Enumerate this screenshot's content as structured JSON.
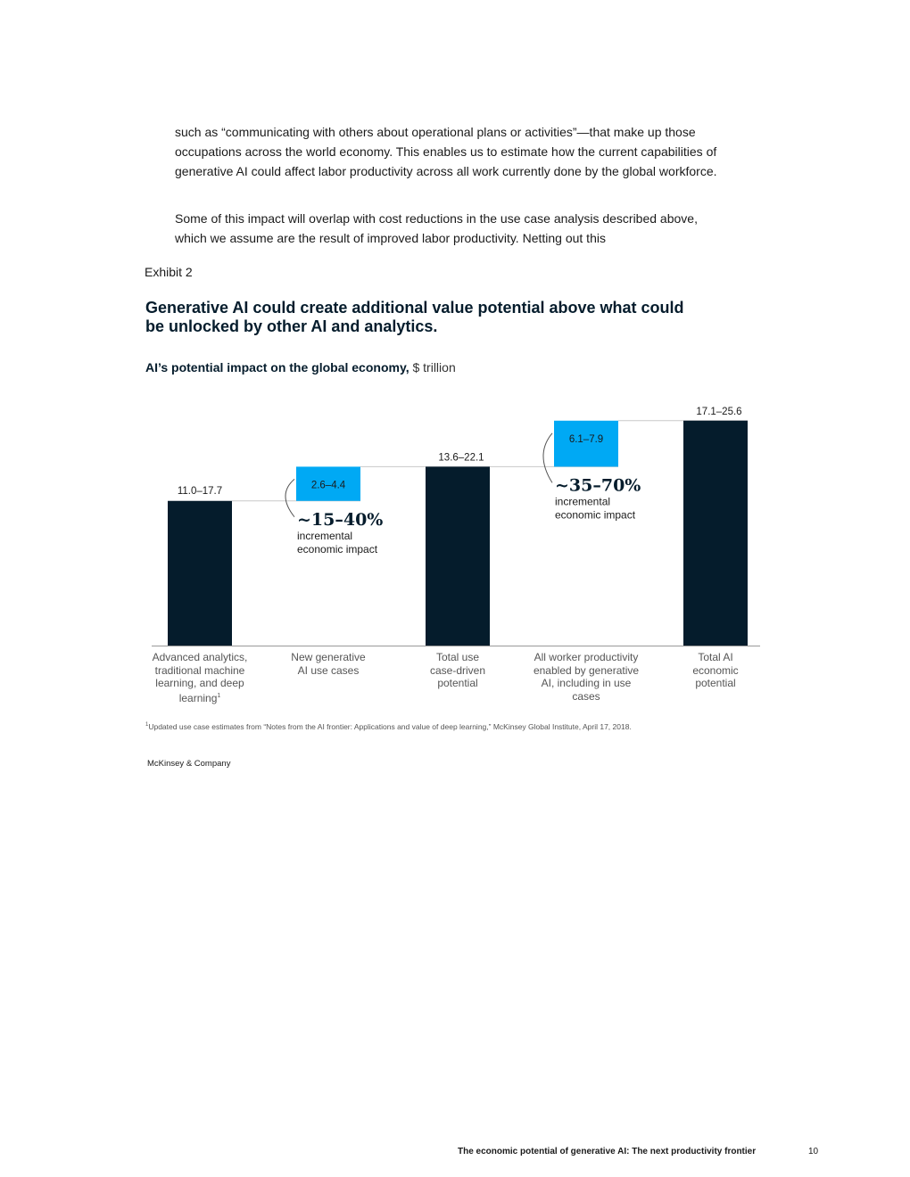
{
  "body": {
    "paragraph1": "such as “communicating with others about operational plans or activities”—that make up those occupations across the world economy. This enables us to estimate how the current capabilities of generative AI could affect labor productivity across all work currently done by the global workforce.",
    "paragraph2": "Some of this impact will overlap with cost reductions in the use case analysis described above, which we assume are the result of improved labor productivity. Netting out this"
  },
  "exhibit": {
    "label": "Exhibit 2",
    "title": "Generative AI could create additional value potential above what could be unlocked by other AI and analytics.",
    "subtitle_bold": "AI’s potential impact on the global economy,",
    "subtitle_unit": "$ trillion"
  },
  "chart_data": {
    "type": "bar",
    "subtype": "waterfall",
    "categories": [
      "Advanced analytics, traditional machine learning, and deep learning",
      "New generative AI use cases",
      "Total use case-driven potential",
      "All worker productivity enabled by generative AI, including in use cases",
      "Total AI economic potential"
    ],
    "category_lines": [
      [
        "Advanced analytics,",
        "traditional machine",
        "learning, and deep",
        "learning"
      ],
      [
        "New generative",
        "AI use cases"
      ],
      [
        "Total use",
        "case-driven",
        "potential"
      ],
      [
        "All worker productivity",
        "enabled by generative",
        "AI, including in use",
        "cases"
      ],
      [
        "Total AI",
        "economic",
        "potential"
      ]
    ],
    "bars": [
      {
        "label": "11.0–17.7",
        "low": 11.0,
        "high": 17.7,
        "base": 0,
        "value": 11.0,
        "kind": "total"
      },
      {
        "label": "2.6–4.4",
        "low": 2.6,
        "high": 4.4,
        "base": 11.0,
        "value": 2.6,
        "kind": "increment"
      },
      {
        "label": "13.6–22.1",
        "low": 13.6,
        "high": 22.1,
        "base": 0,
        "value": 13.6,
        "kind": "total"
      },
      {
        "label": "6.1–7.9",
        "low": 6.1,
        "high": 7.9,
        "base": 13.6,
        "value": 3.5,
        "kind": "increment"
      },
      {
        "label": "17.1–25.6",
        "low": 17.1,
        "high": 25.6,
        "base": 0,
        "value": 17.1,
        "kind": "total"
      }
    ],
    "annotations": [
      {
        "bar_index": 1,
        "value": "~15–40%",
        "text_lines": [
          "incremental",
          "economic impact"
        ]
      },
      {
        "bar_index": 3,
        "value": "~35–70%",
        "text_lines": [
          "incremental",
          "economic impact"
        ]
      }
    ],
    "footnote_mark": "1",
    "colors": {
      "total": "#051c2c",
      "increment": "#00a9f4",
      "connector": "#c8c8c8",
      "axis": "#999999",
      "label": "#1a1a1a"
    }
  },
  "footnote": {
    "mark": "1",
    "text": "Updated use case estimates from “Notes from the AI frontier: Applications and value of deep learning,” McKinsey Global Institute, April 17, 2018."
  },
  "footer": {
    "brand": "McKinsey & Company",
    "running_title": "The economic potential of generative AI: The next productivity frontier",
    "page_number": "10"
  }
}
